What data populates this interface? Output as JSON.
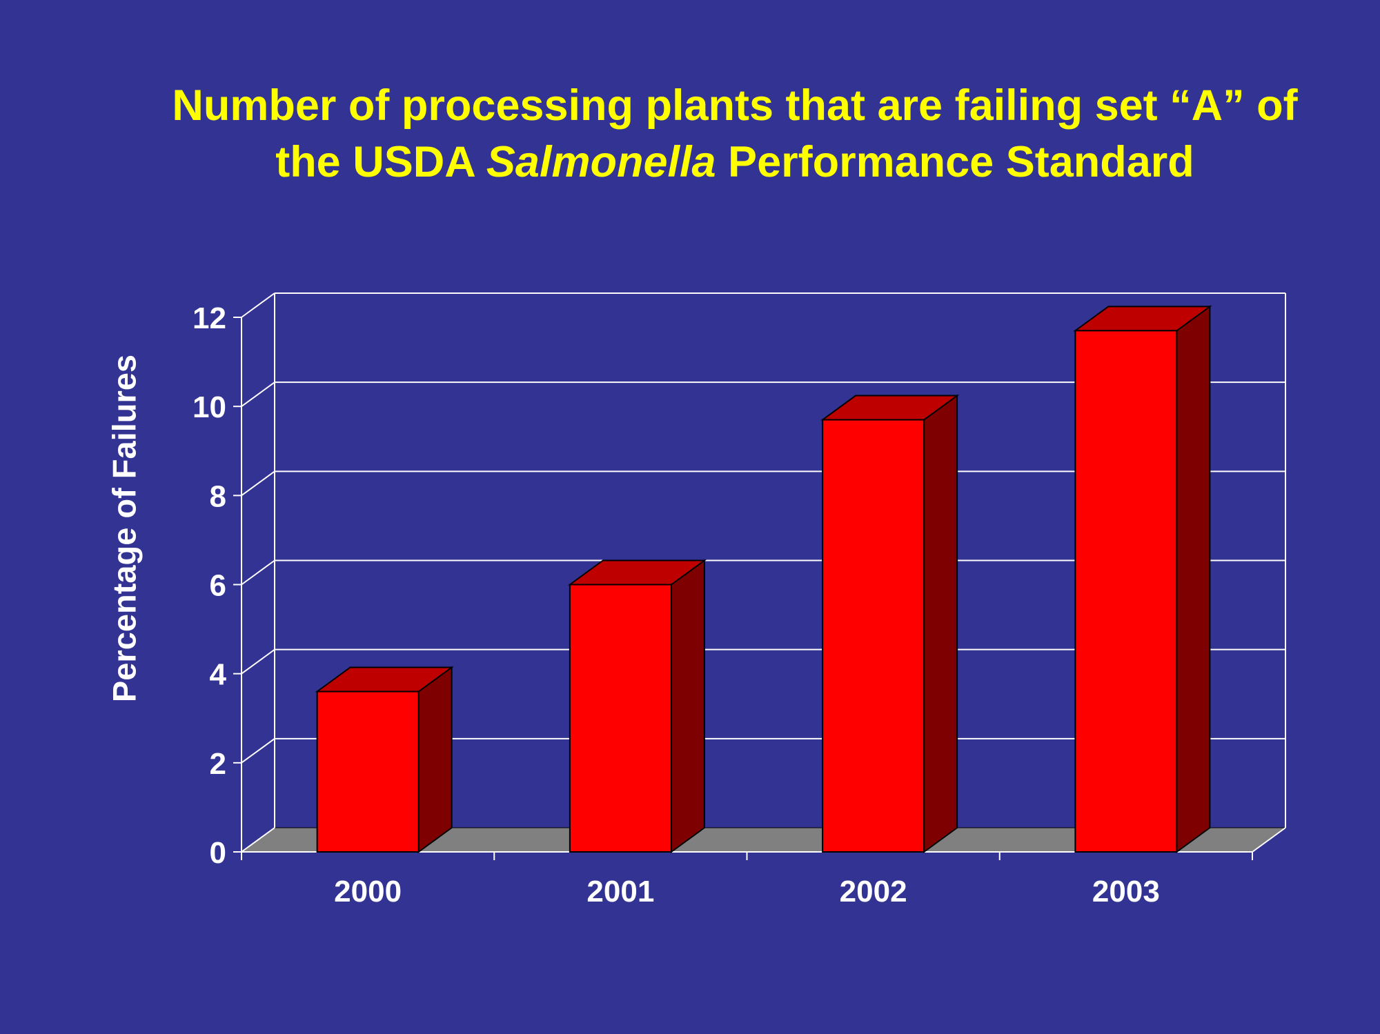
{
  "chart_data": {
    "type": "bar",
    "title_line1": "Number of processing plants that are failing set “A” of",
    "title_line2_pre": "the USDA ",
    "title_line2_italic": "Salmonella",
    "title_line2_post": " Performance Standard",
    "ylabel": "Percentage of Failures",
    "xlabel": "",
    "categories": [
      "2000",
      "2001",
      "2002",
      "2003"
    ],
    "values": [
      3.6,
      6.0,
      9.7,
      11.7
    ],
    "ylim": [
      0,
      12
    ],
    "yticks": [
      0,
      2,
      4,
      6,
      8,
      10,
      12
    ],
    "grid": true,
    "three_d": true,
    "colors": {
      "background": "#333394",
      "title": "#ffff00",
      "bar_front": "#ff0000",
      "bar_top": "#bf0000",
      "bar_side": "#7f0000",
      "floor": "#808080",
      "grid": "#ffffff",
      "text": "#ffffff"
    }
  }
}
